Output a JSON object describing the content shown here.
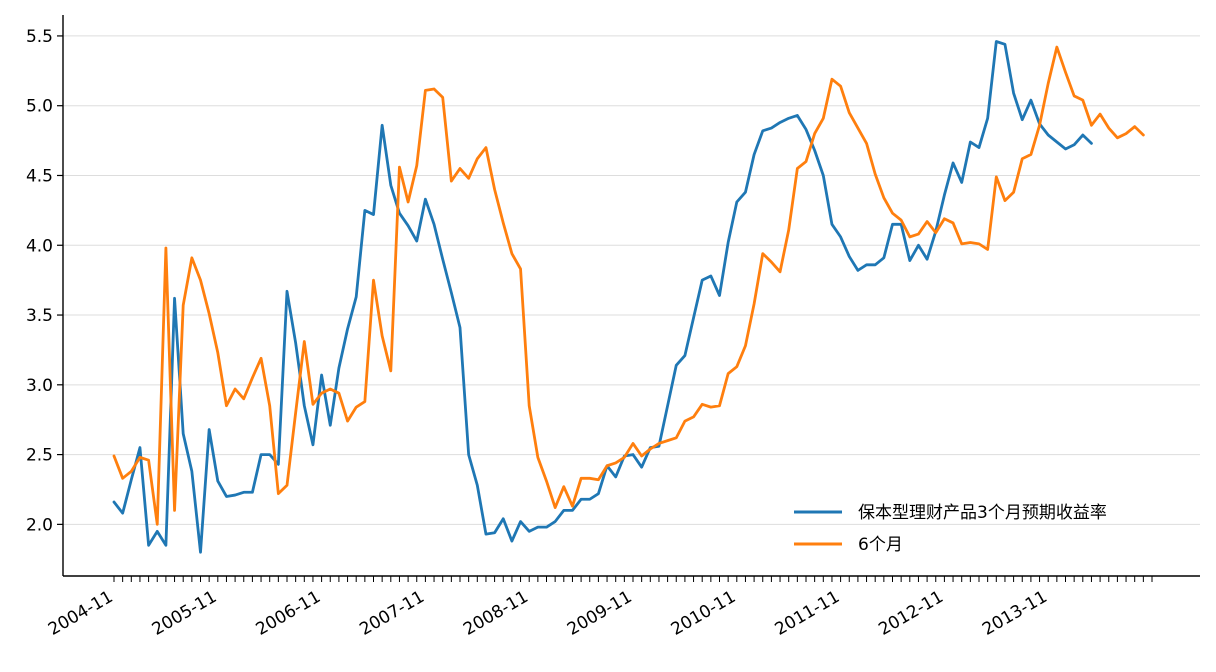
{
  "chart_data": {
    "type": "line",
    "title": "",
    "xlabel": "",
    "ylabel": "",
    "ylim": [
      1.63,
      5.65
    ],
    "yticks": [
      "2.0",
      "2.5",
      "3.0",
      "3.5",
      "4.0",
      "4.5",
      "5.0",
      "5.5"
    ],
    "y_gridlines": true,
    "legend_position": "lower-right",
    "x": [
      "2004-11",
      "2004-12",
      "2005-01",
      "2005-02",
      "2005-03",
      "2005-04",
      "2005-05",
      "2005-06",
      "2005-07",
      "2005-08",
      "2005-09",
      "2005-10",
      "2005-11",
      "2005-12",
      "2006-01",
      "2006-02",
      "2006-03",
      "2006-04",
      "2006-05",
      "2006-06",
      "2006-07",
      "2006-08",
      "2006-09",
      "2006-10",
      "2006-11",
      "2006-12",
      "2007-01",
      "2007-02",
      "2007-03",
      "2007-04",
      "2007-05",
      "2007-06",
      "2007-07",
      "2007-08",
      "2007-09",
      "2007-10",
      "2007-11",
      "2007-12",
      "2008-01",
      "2008-02",
      "2008-03",
      "2008-04",
      "2008-05",
      "2008-06",
      "2008-07",
      "2008-08",
      "2008-09",
      "2008-10",
      "2008-11",
      "2008-12",
      "2009-01",
      "2009-02",
      "2009-03",
      "2009-04",
      "2009-05",
      "2009-06",
      "2009-07",
      "2009-08",
      "2009-09",
      "2009-10",
      "2009-11",
      "2009-12",
      "2010-01",
      "2010-02",
      "2010-03",
      "2010-04",
      "2010-05",
      "2010-06",
      "2010-07",
      "2010-08",
      "2010-09",
      "2010-10",
      "2010-11",
      "2010-12",
      "2011-01",
      "2011-02",
      "2011-03",
      "2011-04",
      "2011-05",
      "2011-06",
      "2011-07",
      "2011-08",
      "2011-09",
      "2011-10",
      "2011-11",
      "2011-12",
      "2012-01",
      "2012-02",
      "2012-03",
      "2012-04",
      "2012-05",
      "2012-06",
      "2012-07",
      "2012-08",
      "2012-09",
      "2012-10",
      "2012-11",
      "2012-12",
      "2013-01",
      "2013-02",
      "2013-03",
      "2013-04",
      "2013-05",
      "2013-06",
      "2013-07",
      "2013-08",
      "2013-09",
      "2013-10",
      "2013-11",
      "2013-12",
      "2014-01",
      "2014-02",
      "2014-03",
      "2014-04",
      "2014-05",
      "2014-06",
      "2014-07",
      "2014-08",
      "2014-09",
      "2014-10",
      "2014-11"
    ],
    "x_tick_labels": [
      "2004-11",
      "2005-11",
      "2006-11",
      "2007-11",
      "2008-11",
      "2009-11",
      "2010-11",
      "2011-11",
      "2012-11",
      "2013-11"
    ],
    "series": [
      {
        "name": "保本型理财产品3个月预期收益率",
        "color": "#1f77b4",
        "values": [
          2.16,
          2.08,
          2.32,
          2.55,
          1.85,
          1.95,
          1.85,
          3.62,
          2.65,
          2.38,
          1.8,
          2.68,
          2.31,
          2.2,
          2.21,
          2.23,
          2.23,
          2.5,
          2.5,
          2.43,
          3.67,
          3.3,
          2.85,
          2.57,
          3.07,
          2.71,
          3.12,
          3.4,
          3.63,
          4.25,
          4.22,
          4.86,
          4.43,
          4.23,
          4.14,
          4.03,
          4.33,
          4.15,
          3.9,
          3.66,
          3.41,
          2.5,
          2.28,
          1.93,
          1.94,
          2.04,
          1.88,
          2.02,
          1.95,
          1.98,
          1.98,
          2.02,
          2.1,
          2.1,
          2.18,
          2.18,
          2.22,
          2.42,
          2.34,
          2.49,
          2.5,
          2.41,
          2.55,
          2.56,
          2.85,
          3.14,
          3.21,
          3.48,
          3.75,
          3.78,
          3.64,
          4.02,
          4.31,
          4.38,
          4.65,
          4.82,
          4.84,
          4.88,
          4.91,
          4.93,
          4.83,
          4.68,
          4.5,
          4.15,
          4.06,
          3.92,
          3.82,
          3.86,
          3.86,
          3.91,
          4.15,
          4.15,
          3.89,
          4.0,
          3.9,
          4.1,
          4.36,
          4.59,
          4.45,
          4.74,
          4.7,
          4.91,
          5.46,
          5.44,
          5.09,
          4.9,
          5.04,
          4.87,
          4.79,
          4.74,
          4.69,
          4.72,
          4.79,
          4.73,
          null,
          null,
          null,
          null,
          null,
          null,
          null
        ]
      },
      {
        "name": "6个月",
        "color": "#ff7f0e",
        "values": [
          2.49,
          2.33,
          2.38,
          2.48,
          2.46,
          2.0,
          3.98,
          2.1,
          3.57,
          3.91,
          3.75,
          3.51,
          3.23,
          2.85,
          2.97,
          2.9,
          3.05,
          3.19,
          2.85,
          2.22,
          2.28,
          2.8,
          3.31,
          2.86,
          2.94,
          2.97,
          2.94,
          2.74,
          2.84,
          2.88,
          3.75,
          3.35,
          3.1,
          4.56,
          4.31,
          4.57,
          5.11,
          5.12,
          5.06,
          4.46,
          4.55,
          4.48,
          4.62,
          4.7,
          4.4,
          4.16,
          3.94,
          3.83,
          2.85,
          2.48,
          2.31,
          2.12,
          2.27,
          2.13,
          2.33,
          2.33,
          2.32,
          2.42,
          2.44,
          2.48,
          2.58,
          2.49,
          2.54,
          2.58,
          2.6,
          2.62,
          2.74,
          2.77,
          2.86,
          2.84,
          2.85,
          3.08,
          3.13,
          3.28,
          3.58,
          3.94,
          3.88,
          3.81,
          4.11,
          4.55,
          4.6,
          4.8,
          4.91,
          5.19,
          5.14,
          4.95,
          4.84,
          4.73,
          4.51,
          4.34,
          4.23,
          4.18,
          4.06,
          4.08,
          4.17,
          4.09,
          4.19,
          4.16,
          4.01,
          4.02,
          4.01,
          3.97,
          4.49,
          4.32,
          4.38,
          4.62,
          4.65,
          4.86,
          5.16,
          5.42,
          5.24,
          5.07,
          5.04,
          4.86,
          4.94,
          4.84,
          4.77,
          4.8,
          4.85,
          4.79,
          null
        ]
      }
    ]
  }
}
